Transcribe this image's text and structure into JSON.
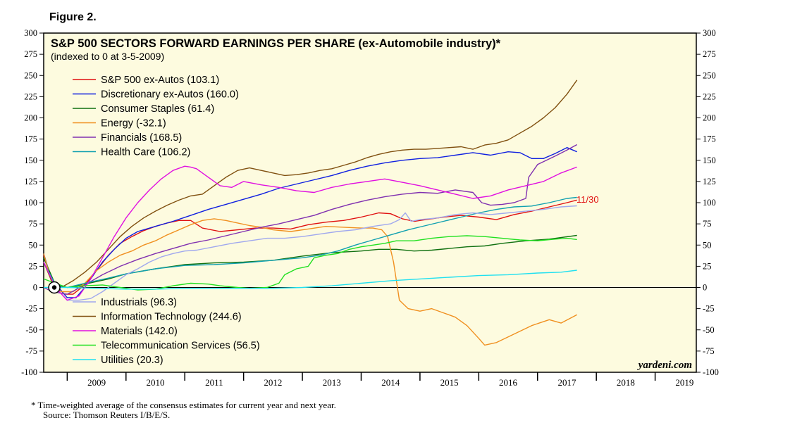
{
  "figure_label": "Figure 2.",
  "footnote": {
    "note": "*  Time-weighted average of the consensus estimates for current year and next year.",
    "source": "Source: Thomson Reuters I/B/E/S."
  },
  "chart_data": {
    "type": "line",
    "title": "S&P 500 SECTORS FORWARD EARNINGS PER SHARE (ex-Automobile industry)*",
    "subtitle": "(indexed to 0 at 3-5-2009)",
    "watermark": "yardeni.com",
    "end_label": "11/30",
    "ylim": [
      -100,
      300
    ],
    "yticks": [
      -100,
      -75,
      -50,
      -25,
      0,
      25,
      50,
      75,
      100,
      125,
      150,
      175,
      200,
      225,
      250,
      275,
      300
    ],
    "ytick_labels": [
      "-100",
      "-75",
      "-50",
      "-25",
      "0",
      "25",
      "50",
      "75",
      "100",
      "125",
      "150",
      "175",
      "200",
      "225",
      "250",
      "275",
      "300"
    ],
    "xlim": [
      2008.6,
      2019.7
    ],
    "xtick_labels": [
      "2009",
      "2010",
      "2011",
      "2012",
      "2013",
      "2014",
      "2015",
      "2016",
      "2017",
      "2018",
      "2019"
    ],
    "background": "#fdfbdf",
    "series": [
      {
        "name": "S&P 500 ex-Autos",
        "legend": "S&P 500 ex-Autos (103.1)",
        "color": "#e01010",
        "x": [
          2008.6,
          2008.75,
          2008.85,
          2008.95,
          2009.1,
          2009.3,
          2009.5,
          2009.7,
          2009.9,
          2010.1,
          2010.3,
          2010.5,
          2010.7,
          2010.9,
          2011.1,
          2011.3,
          2011.6,
          2011.9,
          2012.2,
          2012.5,
          2012.8,
          2013.1,
          2013.4,
          2013.7,
          2014.0,
          2014.3,
          2014.5,
          2014.7,
          2014.9,
          2015.1,
          2015.4,
          2015.7,
          2016.0,
          2016.3,
          2016.6,
          2016.9,
          2017.2,
          2017.5,
          2017.67
        ],
        "y": [
          38,
          5,
          0,
          -8,
          -8,
          3,
          20,
          38,
          52,
          60,
          67,
          72,
          76,
          79,
          79,
          70,
          66,
          68,
          70,
          70,
          69,
          74,
          77,
          79,
          83,
          88,
          87,
          81,
          78,
          80,
          83,
          85,
          83,
          80,
          86,
          90,
          95,
          100,
          103.1
        ]
      },
      {
        "name": "Discretionary ex-Autos",
        "legend": "Discretionary ex-Autos (160.0)",
        "color": "#1020e0",
        "x": [
          2008.6,
          2008.75,
          2008.85,
          2009.0,
          2009.15,
          2009.3,
          2009.45,
          2009.6,
          2009.8,
          2010.0,
          2010.2,
          2010.5,
          2010.8,
          2011.1,
          2011.4,
          2011.7,
          2012.0,
          2012.3,
          2012.6,
          2012.9,
          2013.2,
          2013.5,
          2013.8,
          2014.1,
          2014.4,
          2014.7,
          2015.0,
          2015.3,
          2015.6,
          2015.9,
          2016.2,
          2016.5,
          2016.7,
          2016.9,
          2017.1,
          2017.3,
          2017.5,
          2017.67
        ],
        "y": [
          40,
          5,
          0,
          -12,
          -12,
          0,
          15,
          30,
          45,
          58,
          66,
          72,
          78,
          85,
          92,
          98,
          104,
          110,
          117,
          122,
          127,
          132,
          138,
          143,
          147,
          150,
          152,
          153,
          156,
          159,
          156,
          160,
          159,
          152,
          152,
          158,
          165,
          160
        ]
      },
      {
        "name": "Consumer Staples",
        "legend": "Consumer Staples (61.4)",
        "color": "#107010",
        "x": [
          2008.6,
          2008.8,
          2009.0,
          2009.3,
          2009.7,
          2010.0,
          2010.5,
          2011.0,
          2011.5,
          2012.0,
          2012.5,
          2013.0,
          2013.5,
          2014.0,
          2014.3,
          2014.6,
          2014.9,
          2015.2,
          2015.5,
          2015.8,
          2016.1,
          2016.4,
          2016.8,
          2017.2,
          2017.67
        ],
        "y": [
          35,
          3,
          0,
          4,
          10,
          16,
          22,
          27,
          29,
          30,
          32,
          37,
          41,
          43,
          45,
          45,
          43,
          44,
          46,
          48,
          49,
          52,
          55,
          57,
          61.4
        ]
      },
      {
        "name": "Energy",
        "legend": "Energy (-32.1)",
        "color": "#f09020",
        "x": [
          2008.6,
          2008.75,
          2008.9,
          2009.1,
          2009.3,
          2009.5,
          2009.7,
          2009.9,
          2010.1,
          2010.3,
          2010.5,
          2010.7,
          2010.9,
          2011.1,
          2011.3,
          2011.5,
          2011.7,
          2011.9,
          2012.1,
          2012.3,
          2012.5,
          2012.8,
          2013.1,
          2013.4,
          2013.7,
          2014.0,
          2014.2,
          2014.35,
          2014.45,
          2014.55,
          2014.65,
          2014.8,
          2015.0,
          2015.2,
          2015.4,
          2015.6,
          2015.8,
          2016.0,
          2016.1,
          2016.3,
          2016.6,
          2016.9,
          2017.2,
          2017.4,
          2017.67
        ],
        "y": [
          40,
          2,
          -5,
          -5,
          5,
          20,
          30,
          38,
          43,
          50,
          55,
          62,
          68,
          74,
          79,
          81,
          79,
          76,
          73,
          71,
          68,
          66,
          69,
          72,
          71,
          70,
          70,
          68,
          60,
          30,
          -15,
          -25,
          -28,
          -25,
          -30,
          -35,
          -45,
          -60,
          -68,
          -65,
          -55,
          -45,
          -38,
          -42,
          -32.1
        ]
      },
      {
        "name": "Financials",
        "legend": "Financials (168.5)",
        "color": "#8030b0",
        "x": [
          2008.6,
          2008.75,
          2009.0,
          2009.3,
          2009.6,
          2009.9,
          2010.2,
          2010.5,
          2010.8,
          2011.1,
          2011.4,
          2011.7,
          2012.0,
          2012.3,
          2012.6,
          2012.9,
          2013.2,
          2013.5,
          2013.8,
          2014.1,
          2014.4,
          2014.7,
          2015.0,
          2015.3,
          2015.6,
          2015.9,
          2016.05,
          2016.2,
          2016.4,
          2016.6,
          2016.8,
          2016.85,
          2017.0,
          2017.3,
          2017.5,
          2017.67
        ],
        "y": [
          0,
          -5,
          -8,
          3,
          15,
          25,
          33,
          40,
          46,
          52,
          56,
          61,
          66,
          71,
          75,
          80,
          85,
          92,
          98,
          103,
          107,
          110,
          112,
          111,
          115,
          112,
          100,
          97,
          98,
          100,
          105,
          130,
          145,
          155,
          162,
          168.5
        ]
      },
      {
        "name": "Health Care",
        "legend": "Health Care (106.2)",
        "color": "#10a0b0",
        "x": [
          2008.6,
          2008.8,
          2009.0,
          2009.3,
          2009.7,
          2010.0,
          2010.5,
          2011.0,
          2011.5,
          2012.0,
          2012.5,
          2013.0,
          2013.3,
          2013.6,
          2013.9,
          2014.2,
          2014.5,
          2014.8,
          2015.1,
          2015.4,
          2015.7,
          2016.0,
          2016.3,
          2016.6,
          2016.9,
          2017.2,
          2017.5,
          2017.67
        ],
        "y": [
          30,
          3,
          0,
          5,
          11,
          16,
          22,
          26,
          27,
          29,
          32,
          35,
          38,
          43,
          50,
          56,
          62,
          68,
          73,
          78,
          83,
          88,
          92,
          95,
          96,
          100,
          105,
          106.2
        ]
      },
      {
        "name": "Industrials",
        "legend": "Industrials (96.3)",
        "color": "#a0a8ee",
        "x": [
          2008.6,
          2008.8,
          2009.0,
          2009.2,
          2009.4,
          2009.6,
          2009.8,
          2010.0,
          2010.2,
          2010.4,
          2010.6,
          2010.8,
          2011.0,
          2011.2,
          2011.5,
          2011.8,
          2012.1,
          2012.4,
          2012.7,
          2013.0,
          2013.3,
          2013.6,
          2013.9,
          2014.2,
          2014.5,
          2014.65,
          2014.75,
          2014.85,
          2015.0,
          2015.3,
          2015.6,
          2015.9,
          2016.2,
          2016.5,
          2016.8,
          2017.1,
          2017.4,
          2017.67
        ],
        "y": [
          30,
          0,
          -15,
          -15,
          -13,
          -5,
          5,
          15,
          22,
          30,
          36,
          40,
          43,
          44,
          48,
          52,
          55,
          58,
          58,
          60,
          63,
          66,
          68,
          72,
          75,
          80,
          88,
          78,
          80,
          82,
          86,
          88,
          86,
          88,
          90,
          92,
          95,
          96.3
        ]
      },
      {
        "name": "Information Technology",
        "legend": "Information Technology (244.6)",
        "color": "#805010",
        "x": [
          2008.6,
          2008.75,
          2008.9,
          2009.1,
          2009.3,
          2009.5,
          2009.7,
          2009.9,
          2010.1,
          2010.3,
          2010.5,
          2010.7,
          2010.9,
          2011.1,
          2011.3,
          2011.5,
          2011.7,
          2011.9,
          2012.1,
          2012.3,
          2012.5,
          2012.7,
          2012.9,
          2013.1,
          2013.3,
          2013.5,
          2013.7,
          2013.9,
          2014.1,
          2014.3,
          2014.5,
          2014.7,
          2014.9,
          2015.1,
          2015.3,
          2015.5,
          2015.7,
          2015.9,
          2016.1,
          2016.3,
          2016.5,
          2016.7,
          2016.9,
          2017.1,
          2017.3,
          2017.5,
          2017.67
        ],
        "y": [
          30,
          5,
          0,
          8,
          18,
          30,
          45,
          60,
          72,
          82,
          90,
          97,
          103,
          108,
          110,
          120,
          130,
          138,
          141,
          138,
          135,
          132,
          133,
          135,
          138,
          140,
          144,
          148,
          153,
          157,
          160,
          162,
          163,
          163,
          164,
          165,
          166,
          163,
          168,
          170,
          174,
          182,
          190,
          200,
          212,
          228,
          244.6
        ]
      },
      {
        "name": "Materials",
        "legend": "Materials (142.0)",
        "color": "#e010e0",
        "x": [
          2008.6,
          2008.8,
          2009.0,
          2009.2,
          2009.4,
          2009.6,
          2009.8,
          2010.0,
          2010.2,
          2010.4,
          2010.6,
          2010.8,
          2011.0,
          2011.1,
          2011.2,
          2011.4,
          2011.6,
          2011.8,
          2012.0,
          2012.3,
          2012.6,
          2012.9,
          2013.2,
          2013.5,
          2013.8,
          2014.1,
          2014.4,
          2014.7,
          2015.0,
          2015.3,
          2015.6,
          2015.9,
          2016.2,
          2016.5,
          2016.8,
          2017.1,
          2017.4,
          2017.67
        ],
        "y": [
          30,
          0,
          -15,
          -10,
          10,
          35,
          60,
          82,
          100,
          115,
          128,
          138,
          143,
          142,
          140,
          130,
          120,
          118,
          125,
          121,
          118,
          114,
          112,
          118,
          122,
          125,
          128,
          124,
          120,
          115,
          110,
          105,
          108,
          115,
          120,
          125,
          135,
          142
        ]
      },
      {
        "name": "Telecommunication Services",
        "legend": "Telecommunication Services (56.5)",
        "color": "#20e020",
        "x": [
          2008.6,
          2008.8,
          2009.0,
          2009.3,
          2009.6,
          2009.9,
          2010.2,
          2010.5,
          2010.8,
          2011.1,
          2011.4,
          2011.6,
          2011.9,
          2012.1,
          2012.4,
          2012.6,
          2012.7,
          2012.9,
          2013.1,
          2013.2,
          2013.4,
          2013.6,
          2013.8,
          2014.0,
          2014.2,
          2014.4,
          2014.6,
          2014.9,
          2015.2,
          2015.5,
          2015.8,
          2016.1,
          2016.4,
          2016.7,
          2017.0,
          2017.3,
          2017.5,
          2017.67
        ],
        "y": [
          10,
          5,
          0,
          2,
          3,
          0,
          -3,
          -2,
          2,
          5,
          4,
          2,
          0,
          -1,
          0,
          5,
          15,
          22,
          25,
          35,
          38,
          40,
          45,
          48,
          50,
          52,
          55,
          55,
          58,
          60,
          61,
          60,
          58,
          56,
          55,
          57,
          58,
          56.5
        ]
      },
      {
        "name": "Utilities",
        "legend": "Utilities (20.3)",
        "color": "#20e0f0",
        "x": [
          2008.6,
          2009.0,
          2009.5,
          2010.0,
          2010.5,
          2011.0,
          2011.5,
          2012.0,
          2012.5,
          2013.0,
          2013.5,
          2014.0,
          2014.5,
          2015.0,
          2015.5,
          2016.0,
          2016.5,
          2017.0,
          2017.4,
          2017.67
        ],
        "y": [
          0,
          0,
          -1,
          -2,
          -2,
          -1,
          -1,
          -1,
          -1,
          0,
          2,
          5,
          8,
          10,
          12,
          14,
          15,
          17,
          18,
          20.3
        ]
      }
    ]
  }
}
